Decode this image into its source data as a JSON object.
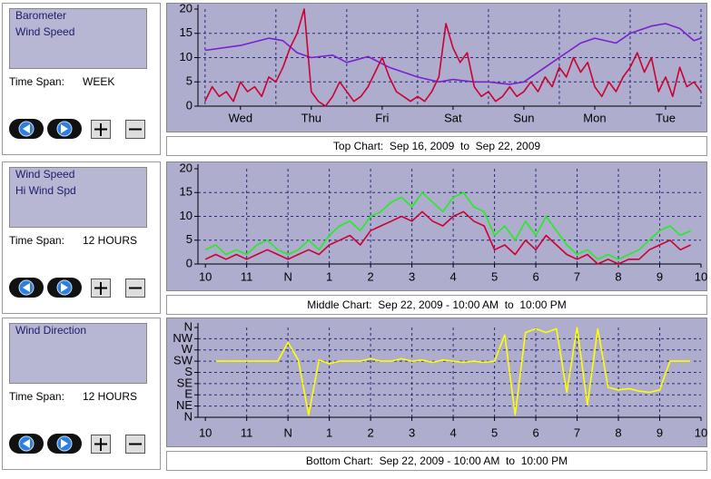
{
  "chart_data": [
    {
      "type": "line",
      "caption": "Top Chart:  Sep 16, 2009  to  Sep 22, 2009",
      "time_span_label": "Time Span:",
      "time_span": "WEEK",
      "xlim": [
        -0.1,
        7.0
      ],
      "xticks": [
        {
          "value": 0.5,
          "label": "Wed"
        },
        {
          "value": 1.5,
          "label": "Thu"
        },
        {
          "value": 2.5,
          "label": "Fri"
        },
        {
          "value": 3.5,
          "label": "Sat"
        },
        {
          "value": 4.5,
          "label": "Sun"
        },
        {
          "value": 5.5,
          "label": "Mon"
        },
        {
          "value": 6.5,
          "label": "Tue"
        }
      ],
      "xgrid": [
        0,
        1,
        2,
        3,
        4,
        5,
        6,
        7
      ],
      "ylim": [
        0,
        20
      ],
      "yticks": [
        0,
        5,
        10,
        15,
        20
      ],
      "ygrid": [
        5,
        10,
        15
      ],
      "series": [
        {
          "name": "Barometer",
          "color": "#7b1fd0",
          "x": [
            0,
            0.5,
            0.9,
            1.1,
            1.3,
            1.5,
            1.8,
            2.0,
            2.3,
            2.6,
            3.0,
            3.3,
            3.5,
            3.8,
            4.0,
            4.3,
            4.5,
            4.8,
            5.0,
            5.3,
            5.5,
            5.8,
            6.0,
            6.3,
            6.5,
            6.7,
            6.9,
            7.0
          ],
          "values": [
            11.5,
            12.5,
            14,
            13.5,
            11,
            10,
            10.5,
            9,
            10.2,
            8,
            6,
            5,
            5.5,
            5,
            5,
            4.5,
            5,
            8,
            10,
            13,
            14,
            13,
            15,
            16.5,
            17,
            16,
            13.5,
            14
          ]
        },
        {
          "name": "Wind Speed",
          "color": "#cc0033",
          "x": [
            0,
            0.1,
            0.2,
            0.3,
            0.4,
            0.5,
            0.6,
            0.7,
            0.8,
            0.9,
            1.0,
            1.1,
            1.2,
            1.3,
            1.4,
            1.5,
            1.6,
            1.7,
            1.8,
            1.9,
            2.0,
            2.1,
            2.2,
            2.3,
            2.4,
            2.5,
            2.6,
            2.7,
            2.8,
            2.9,
            3.0,
            3.1,
            3.2,
            3.3,
            3.4,
            3.5,
            3.6,
            3.7,
            3.8,
            3.9,
            4.0,
            4.1,
            4.2,
            4.3,
            4.4,
            4.5,
            4.6,
            4.7,
            4.8,
            4.9,
            5.0,
            5.1,
            5.2,
            5.3,
            5.4,
            5.5,
            5.6,
            5.7,
            5.8,
            5.9,
            6.0,
            6.1,
            6.2,
            6.3,
            6.4,
            6.5,
            6.6,
            6.7,
            6.8,
            6.9,
            7.0
          ],
          "values": [
            1,
            4,
            2,
            3,
            1,
            5,
            3,
            4,
            2,
            6,
            5,
            8,
            12,
            15,
            20,
            3,
            1,
            0,
            2,
            5,
            3,
            1,
            2,
            4,
            7,
            10,
            6,
            3,
            2,
            1,
            2,
            1,
            3,
            6,
            17,
            12,
            9,
            11,
            4,
            2,
            3,
            1,
            2,
            4,
            2,
            3,
            5,
            3,
            6,
            4,
            8,
            6,
            10,
            7,
            9,
            4,
            2,
            5,
            3,
            6,
            8,
            11,
            7,
            10,
            3,
            6,
            2,
            8,
            4,
            5,
            3
          ]
        }
      ]
    },
    {
      "type": "line",
      "caption": "Middle Chart:  Sep 22, 2009 - 10:00 AM  to  10:00 PM",
      "time_span_label": "Time Span:",
      "time_span": "12 HOURS",
      "xlim": [
        9.82,
        22
      ],
      "xticks": [
        10,
        11,
        {
          "value": 12,
          "label": "N"
        },
        {
          "value": 13,
          "label": "1"
        },
        {
          "value": 14,
          "label": "2"
        },
        {
          "value": 15,
          "label": "3"
        },
        {
          "value": 16,
          "label": "4"
        },
        {
          "value": 17,
          "label": "5"
        },
        {
          "value": 18,
          "label": "6"
        },
        {
          "value": 19,
          "label": "7"
        },
        {
          "value": 20,
          "label": "8"
        },
        {
          "value": 21,
          "label": "9"
        },
        {
          "value": 22,
          "label": "10"
        }
      ],
      "xgrid": [
        11,
        12,
        13,
        14,
        15,
        16,
        17,
        18,
        19,
        20,
        21
      ],
      "ylim": [
        0,
        20
      ],
      "yticks": [
        0,
        5,
        10,
        15,
        20
      ],
      "ygrid": [
        5,
        10,
        15
      ],
      "series": [
        {
          "name": "Hi Wind Spd",
          "color": "#22ee22",
          "x": [
            10,
            10.25,
            10.5,
            10.75,
            11,
            11.25,
            11.5,
            11.75,
            12,
            12.25,
            12.5,
            12.75,
            13,
            13.25,
            13.5,
            13.75,
            14,
            14.25,
            14.5,
            14.75,
            15,
            15.25,
            15.5,
            15.75,
            16,
            16.25,
            16.5,
            16.75,
            17,
            17.25,
            17.5,
            17.75,
            18,
            18.25,
            18.5,
            18.75,
            19,
            19.25,
            19.5,
            19.75,
            20,
            20.25,
            20.5,
            20.75,
            21,
            21.25,
            21.5,
            21.75
          ],
          "values": [
            3,
            4,
            2,
            3,
            2,
            4,
            5,
            3,
            2,
            3,
            5,
            3,
            6,
            8,
            9,
            7,
            10,
            11,
            13,
            14,
            12,
            15,
            13,
            11,
            14,
            15,
            12,
            11,
            6,
            8,
            5,
            9,
            6,
            10,
            7,
            4,
            2,
            3,
            1,
            2,
            1,
            2,
            3,
            5,
            7,
            8,
            6,
            7
          ]
        },
        {
          "name": "Wind Speed",
          "color": "#cc0033",
          "x": [
            10,
            10.25,
            10.5,
            10.75,
            11,
            11.25,
            11.5,
            11.75,
            12,
            12.25,
            12.5,
            12.75,
            13,
            13.25,
            13.5,
            13.75,
            14,
            14.25,
            14.5,
            14.75,
            15,
            15.25,
            15.5,
            15.75,
            16,
            16.25,
            16.5,
            16.75,
            17,
            17.25,
            17.5,
            17.75,
            18,
            18.25,
            18.5,
            18.75,
            19,
            19.25,
            19.5,
            19.75,
            20,
            20.25,
            20.5,
            20.75,
            21,
            21.25,
            21.5,
            21.75
          ],
          "values": [
            1,
            2,
            1,
            2,
            1,
            2,
            3,
            2,
            1,
            2,
            3,
            2,
            4,
            5,
            6,
            4,
            7,
            8,
            9,
            10,
            9,
            11,
            9,
            8,
            10,
            11,
            9,
            8,
            3,
            4,
            2,
            5,
            3,
            6,
            4,
            2,
            1,
            2,
            0,
            1,
            0,
            1,
            1,
            3,
            4,
            5,
            3,
            4
          ]
        }
      ]
    },
    {
      "type": "line",
      "caption": "Bottom Chart:  Sep 22, 2009 - 10:00 AM  to  10:00 PM",
      "time_span_label": "Time Span:",
      "time_span": "12 HOURS",
      "xlim": [
        9.82,
        22
      ],
      "xticks": [
        10,
        11,
        {
          "value": 12,
          "label": "N"
        },
        {
          "value": 13,
          "label": "1"
        },
        {
          "value": 14,
          "label": "2"
        },
        {
          "value": 15,
          "label": "3"
        },
        {
          "value": 16,
          "label": "4"
        },
        {
          "value": 17,
          "label": "5"
        },
        {
          "value": 18,
          "label": "6"
        },
        {
          "value": 19,
          "label": "7"
        },
        {
          "value": 20,
          "label": "8"
        },
        {
          "value": 21,
          "label": "9"
        },
        {
          "value": 22,
          "label": "10"
        }
      ],
      "xgrid": [
        11,
        12,
        13,
        14,
        15,
        16,
        17,
        18,
        19,
        20,
        21
      ],
      "ylim": [
        0,
        360
      ],
      "yticks": [
        {
          "value": 0,
          "label": "N"
        },
        {
          "value": 45,
          "label": "NE"
        },
        {
          "value": 90,
          "label": "E"
        },
        {
          "value": 135,
          "label": "SE"
        },
        {
          "value": 180,
          "label": "S"
        },
        {
          "value": 225,
          "label": "SW"
        },
        {
          "value": 270,
          "label": "W"
        },
        {
          "value": 315,
          "label": "NW"
        },
        {
          "value": 360,
          "label": "N"
        }
      ],
      "ygrid": [
        45,
        90,
        135,
        180,
        225,
        270,
        315
      ],
      "series": [
        {
          "name": "Wind Direction",
          "color": "#ffff00",
          "x": [
            10.25,
            10.5,
            10.75,
            11,
            11.25,
            11.5,
            11.75,
            12,
            12.25,
            12.5,
            12.75,
            13,
            13.25,
            13.5,
            13.75,
            14,
            14.25,
            14.5,
            14.75,
            15,
            15.25,
            15.5,
            15.75,
            16,
            16.25,
            16.5,
            16.75,
            17,
            17.25,
            17.5,
            17.75,
            18,
            18.25,
            18.5,
            18.75,
            19,
            19.25,
            19.5,
            19.75,
            20,
            20.25,
            20.5,
            20.75,
            21,
            21.25,
            21.5,
            21.75
          ],
          "values": [
            225,
            225,
            225,
            225,
            225,
            225,
            225,
            300,
            230,
            10,
            230,
            215,
            225,
            225,
            225,
            235,
            225,
            225,
            235,
            225,
            230,
            220,
            230,
            225,
            220,
            225,
            220,
            225,
            330,
            10,
            340,
            355,
            340,
            355,
            100,
            360,
            50,
            355,
            120,
            110,
            115,
            105,
            100,
            110,
            225,
            225,
            225
          ]
        }
      ]
    }
  ]
}
